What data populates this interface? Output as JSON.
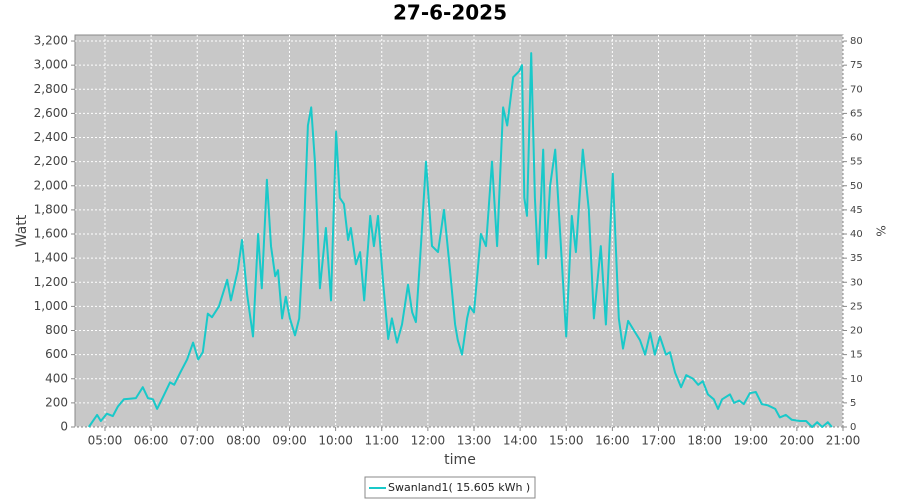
{
  "chart_data": {
    "type": "line",
    "title": "27-6-2025",
    "x_label": "time",
    "y_label": "Watt",
    "y2_label": "%",
    "x": [
      4.65,
      4.83,
      4.91,
      5.04,
      5.17,
      5.28,
      5.41,
      5.67,
      5.82,
      5.93,
      6.04,
      6.13,
      6.26,
      6.41,
      6.5,
      6.63,
      6.78,
      6.91,
      7.02,
      7.12,
      7.23,
      7.32,
      7.47,
      7.65,
      7.73,
      7.88,
      7.97,
      8.08,
      8.21,
      8.32,
      8.4,
      8.51,
      8.6,
      8.69,
      8.75,
      8.84,
      8.92,
      9.01,
      9.12,
      9.21,
      9.31,
      9.4,
      9.47,
      9.55,
      9.66,
      9.79,
      9.9,
      10.01,
      10.09,
      10.18,
      10.27,
      10.33,
      10.44,
      10.53,
      10.62,
      10.75,
      10.83,
      10.92,
      11.03,
      11.14,
      11.22,
      11.33,
      11.44,
      11.57,
      11.66,
      11.74,
      11.85,
      11.96,
      12.09,
      12.22,
      12.35,
      12.48,
      12.59,
      12.65,
      12.74,
      12.85,
      12.91,
      13.0,
      13.15,
      13.26,
      13.39,
      13.5,
      13.63,
      13.72,
      13.85,
      13.98,
      14.04,
      14.09,
      14.15,
      14.24,
      14.32,
      14.39,
      14.5,
      14.56,
      14.65,
      14.76,
      14.87,
      15.0,
      15.12,
      15.21,
      15.36,
      15.49,
      15.6,
      15.75,
      15.86,
      16.01,
      16.14,
      16.23,
      16.34,
      16.47,
      16.6,
      16.71,
      16.82,
      16.92,
      17.03,
      17.16,
      17.25,
      17.36,
      17.49,
      17.6,
      17.75,
      17.86,
      17.96,
      18.07,
      18.2,
      18.29,
      18.38,
      18.55,
      18.64,
      18.75,
      18.85,
      18.98,
      19.11,
      19.24,
      19.37,
      19.53,
      19.63,
      19.76,
      19.89,
      20.07,
      20.2,
      20.33,
      20.44,
      20.55,
      20.67,
      20.76
    ],
    "series": [
      {
        "name": "Swanland1( 15.605 kWh )",
        "color": "#19c9c9",
        "values": [
          0,
          100,
          50,
          110,
          90,
          170,
          230,
          240,
          330,
          240,
          230,
          150,
          250,
          370,
          350,
          450,
          560,
          700,
          560,
          620,
          940,
          910,
          1000,
          1220,
          1050,
          1300,
          1550,
          1100,
          750,
          1600,
          1150,
          2050,
          1500,
          1250,
          1300,
          900,
          1080,
          900,
          760,
          900,
          1600,
          2500,
          2650,
          2200,
          1150,
          1650,
          1050,
          2450,
          1900,
          1850,
          1550,
          1650,
          1350,
          1450,
          1050,
          1750,
          1500,
          1750,
          1200,
          730,
          900,
          700,
          850,
          1180,
          950,
          870,
          1500,
          2200,
          1500,
          1450,
          1800,
          1300,
          850,
          720,
          600,
          900,
          1000,
          950,
          1600,
          1500,
          2200,
          1500,
          2650,
          2500,
          2900,
          2950,
          3000,
          1900,
          1750,
          3100,
          1900,
          1350,
          2300,
          1400,
          2000,
          2300,
          1600,
          750,
          1750,
          1450,
          2300,
          1800,
          900,
          1500,
          850,
          2100,
          900,
          650,
          880,
          800,
          720,
          600,
          780,
          600,
          750,
          600,
          620,
          450,
          330,
          430,
          400,
          350,
          380,
          270,
          230,
          150,
          230,
          270,
          200,
          220,
          190,
          280,
          290,
          190,
          180,
          150,
          80,
          100,
          60,
          50,
          50,
          0,
          40,
          0,
          40,
          0
        ]
      }
    ],
    "xlim": [
      4.35,
      21
    ],
    "xticks": [
      {
        "value": 5,
        "label": "05:00"
      },
      {
        "value": 6,
        "label": "06:00"
      },
      {
        "value": 7,
        "label": "07:00"
      },
      {
        "value": 8,
        "label": "08:00"
      },
      {
        "value": 9,
        "label": "09:00"
      },
      {
        "value": 10,
        "label": "10:00"
      },
      {
        "value": 11,
        "label": "11:00"
      },
      {
        "value": 12,
        "label": "12:00"
      },
      {
        "value": 13,
        "label": "13:00"
      },
      {
        "value": 14,
        "label": "14:00"
      },
      {
        "value": 15,
        "label": "15:00"
      },
      {
        "value": 16,
        "label": "16:00"
      },
      {
        "value": 17,
        "label": "17:00"
      },
      {
        "value": 18,
        "label": "18:00"
      },
      {
        "value": 19,
        "label": "19:00"
      },
      {
        "value": 20,
        "label": "20:00"
      },
      {
        "value": 21,
        "label": "21:00"
      }
    ],
    "ylim": [
      0,
      3250
    ],
    "yticks": [
      0,
      200,
      400,
      600,
      800,
      {
        "value": 1000,
        "label": "1,000"
      },
      {
        "value": 1200,
        "label": "1,200"
      },
      {
        "value": 1400,
        "label": "1,400"
      },
      {
        "value": 1600,
        "label": "1,600"
      },
      {
        "value": 1800,
        "label": "1,800"
      },
      {
        "value": 2000,
        "label": "2,000"
      },
      {
        "value": 2200,
        "label": "2,200"
      },
      {
        "value": 2400,
        "label": "2,400"
      },
      {
        "value": 2600,
        "label": "2,600"
      },
      {
        "value": 2800,
        "label": "2,800"
      },
      {
        "value": 3000,
        "label": "3,000"
      },
      {
        "value": 3200,
        "label": "3,200"
      }
    ],
    "y2lim": [
      0,
      81.25
    ],
    "y2ticks": [
      0,
      5,
      10,
      15,
      20,
      25,
      30,
      35,
      40,
      45,
      50,
      55,
      60,
      65,
      70,
      75,
      80
    ],
    "grid": true
  }
}
